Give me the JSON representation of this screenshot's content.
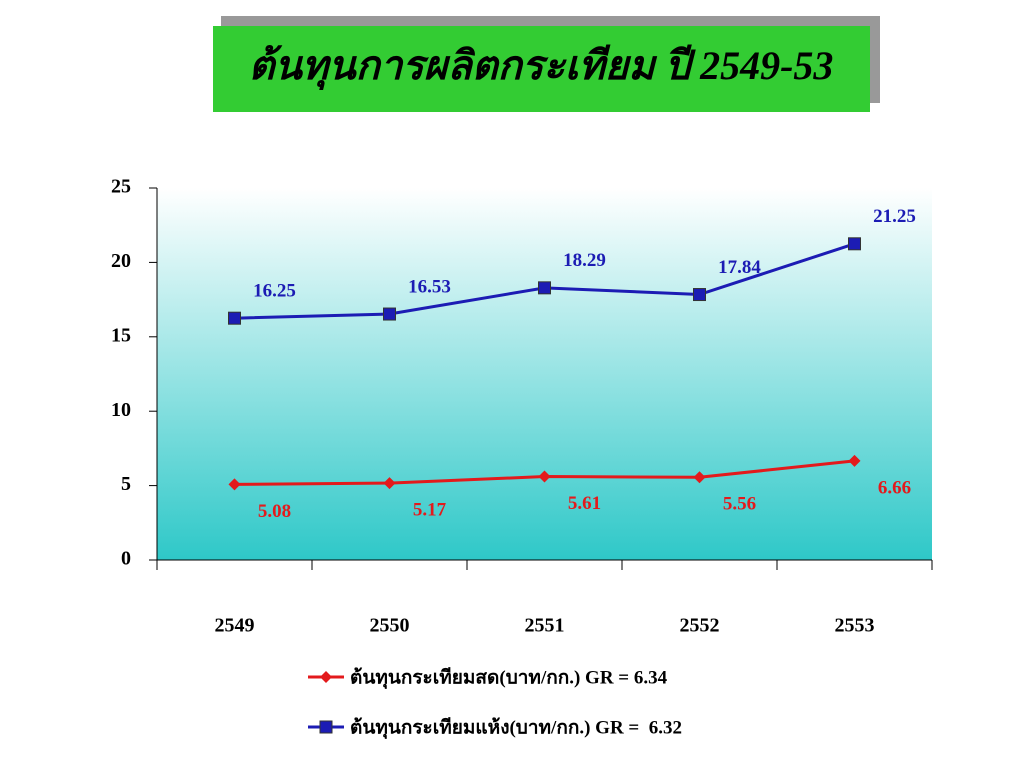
{
  "chart_data": {
    "type": "line",
    "title": "ต้นทุนการผลิตกระเทียม ปี 2549-53",
    "categories": [
      "2549",
      "2550",
      "2551",
      "2552",
      "2553"
    ],
    "series": [
      {
        "name": "ต้นทุนกระเทียมสด(บาท/กก.) GR = 6.34",
        "color": "#e31a1c",
        "marker": "diamond",
        "values": [
          5.08,
          5.17,
          5.61,
          5.56,
          6.66
        ]
      },
      {
        "name": "ต้นทุนกระเทียมแห้ง(บาท/กก.) GR =  6.32",
        "color": "#1c1cb4",
        "marker": "square",
        "values": [
          16.25,
          16.53,
          18.29,
          17.84,
          21.25
        ]
      }
    ],
    "ylim": [
      0,
      25
    ],
    "yticks": [
      0,
      5,
      10,
      15,
      20,
      25
    ],
    "legend": "bottom"
  }
}
